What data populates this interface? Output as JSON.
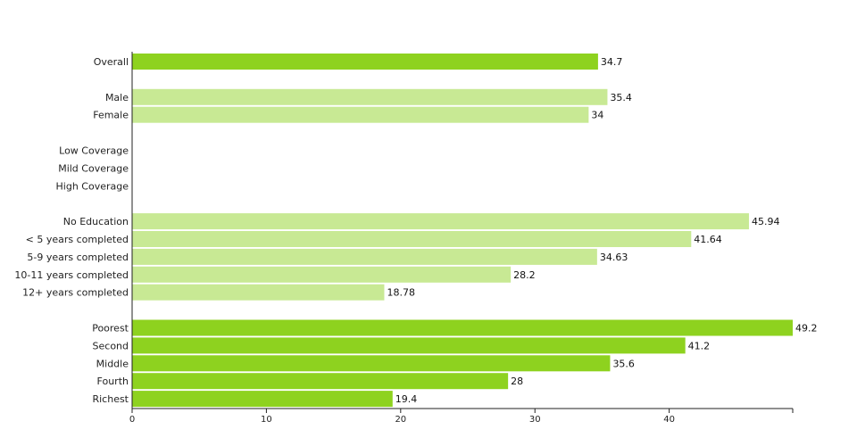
{
  "chart_data": {
    "type": "bar",
    "orientation": "horizontal",
    "xlim": [
      0,
      49.2
    ],
    "x_ticks": [
      0,
      10,
      20,
      30,
      40
    ],
    "grid": false,
    "colors": {
      "dark": "#8ed21f",
      "light": "#c8e994"
    },
    "groups": [
      {
        "items": [
          {
            "label": "Overall",
            "value": 34.7,
            "value_label": "34.7",
            "shade": "dark"
          }
        ]
      },
      {
        "items": [
          {
            "label": "Male",
            "value": 35.4,
            "value_label": "35.4",
            "shade": "light"
          },
          {
            "label": "Female",
            "value": 34,
            "value_label": "34",
            "shade": "light"
          }
        ]
      },
      {
        "items": [
          {
            "label": "Low Coverage",
            "value": null,
            "value_label": "",
            "shade": "light"
          },
          {
            "label": "Mild Coverage",
            "value": null,
            "value_label": "",
            "shade": "light"
          },
          {
            "label": "High Coverage",
            "value": null,
            "value_label": "",
            "shade": "light"
          }
        ]
      },
      {
        "items": [
          {
            "label": "No Education",
            "value": 45.94,
            "value_label": "45.94",
            "shade": "light"
          },
          {
            "label": "< 5 years completed",
            "value": 41.64,
            "value_label": "41.64",
            "shade": "light"
          },
          {
            "label": "5-9 years completed",
            "value": 34.63,
            "value_label": "34.63",
            "shade": "light"
          },
          {
            "label": "10-11 years completed",
            "value": 28.2,
            "value_label": "28.2",
            "shade": "light"
          },
          {
            "label": "12+ years completed",
            "value": 18.78,
            "value_label": "18.78",
            "shade": "light"
          }
        ]
      },
      {
        "items": [
          {
            "label": "Poorest",
            "value": 49.2,
            "value_label": "49.2",
            "shade": "dark"
          },
          {
            "label": "Second",
            "value": 41.2,
            "value_label": "41.2",
            "shade": "dark"
          },
          {
            "label": "Middle",
            "value": 35.6,
            "value_label": "35.6",
            "shade": "dark"
          },
          {
            "label": "Fourth",
            "value": 28,
            "value_label": "28",
            "shade": "dark"
          },
          {
            "label": "Richest",
            "value": 19.4,
            "value_label": "19.4",
            "shade": "dark"
          }
        ]
      }
    ]
  }
}
